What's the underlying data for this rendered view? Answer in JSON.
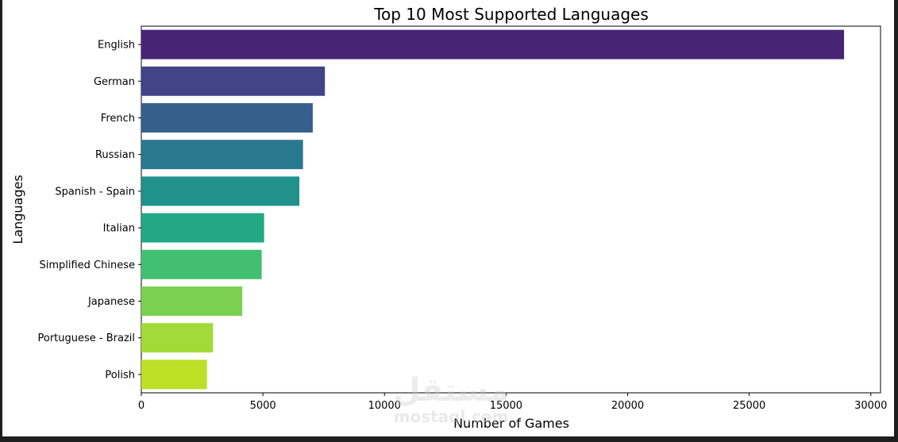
{
  "chart_data": {
    "type": "bar",
    "orientation": "horizontal",
    "title": "Top 10 Most Supported Languages",
    "xlabel": "Number of Games",
    "ylabel": "Languages",
    "categories": [
      "English",
      "German",
      "French",
      "Russian",
      "Spanish - Spain",
      "Italian",
      "Simplified Chinese",
      "Japanese",
      "Portuguese - Brazil",
      "Polish"
    ],
    "values": [
      28900,
      7550,
      7050,
      6650,
      6500,
      5050,
      4950,
      4150,
      2950,
      2700
    ],
    "xlim": [
      0,
      30400
    ],
    "xticks": [
      0,
      5000,
      10000,
      15000,
      20000,
      25000,
      30000
    ],
    "grid": false,
    "colors": [
      "#482475",
      "#414487",
      "#35608d",
      "#2a788e",
      "#21918c",
      "#22a884",
      "#43bf71",
      "#7ad151",
      "#a2da37",
      "#bddf26"
    ]
  },
  "watermark": {
    "arabic": "مستقل",
    "latin": "mostaql.com"
  }
}
